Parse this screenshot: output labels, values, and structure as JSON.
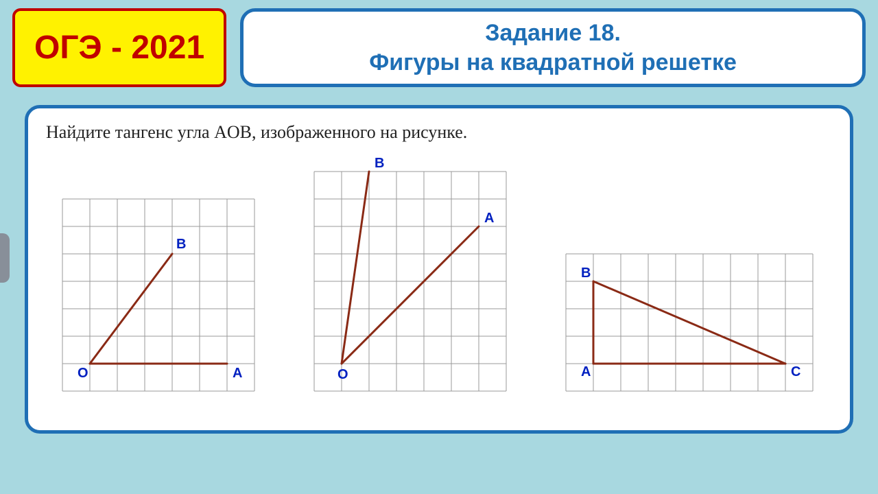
{
  "colors": {
    "page_bg": "#a8d8e0",
    "badge_bg": "#fff200",
    "badge_border": "#c00000",
    "badge_text": "#c00000",
    "panel_bg": "#ffffff",
    "panel_border": "#1f6fb5",
    "title_text": "#1f6fb5",
    "problem_text": "#222222",
    "grid_line": "#9a9a9a",
    "figure_line": "#8a2a15",
    "point_label": "#0020c0"
  },
  "header": {
    "exam_label": "ОГЭ - 2021",
    "title_line1": "Задание 18.",
    "title_line2": "Фигуры на квадратной решетке"
  },
  "problem": {
    "prompt": "Найдите тангенс угла AOB, изображенного на рисунке."
  },
  "figures": {
    "fig1": {
      "type": "angle-on-grid",
      "grid": {
        "cols": 7,
        "rows": 7,
        "cell": 40
      },
      "origin_at": {
        "gx": 1,
        "gy": 6
      },
      "points": {
        "O": {
          "gx": 1,
          "gy": 6,
          "label": "O",
          "label_dx": -18,
          "label_dy": 20
        },
        "A": {
          "gx": 6,
          "gy": 6,
          "label": "A",
          "label_dx": 8,
          "label_dy": 20
        },
        "B": {
          "gx": 4,
          "gy": 2,
          "label": "B",
          "label_dx": 6,
          "label_dy": -8
        }
      },
      "rays": [
        [
          "O",
          "A"
        ],
        [
          "O",
          "B"
        ]
      ],
      "line_width": 3
    },
    "fig2": {
      "type": "angle-on-grid",
      "grid": {
        "cols": 7,
        "rows": 8,
        "cell": 40
      },
      "origin_at": {
        "gx": 1,
        "gy": 7
      },
      "points": {
        "O": {
          "gx": 1,
          "gy": 7,
          "label": "O",
          "label_dx": -6,
          "label_dy": 22
        },
        "A": {
          "gx": 6,
          "gy": 2,
          "label": "A",
          "label_dx": 8,
          "label_dy": -6
        },
        "B": {
          "gx": 2,
          "gy": 0,
          "label": "B",
          "label_dx": 8,
          "label_dy": -6
        }
      },
      "rays": [
        [
          "O",
          "A"
        ],
        [
          "O",
          "B"
        ]
      ],
      "line_width": 3
    },
    "fig3": {
      "type": "angle-on-grid",
      "grid": {
        "cols": 9,
        "rows": 5,
        "cell": 40
      },
      "points": {
        "B": {
          "gx": 1,
          "gy": 1,
          "label": "B",
          "label_dx": -18,
          "label_dy": -6
        },
        "A": {
          "gx": 1,
          "gy": 4,
          "label": "A",
          "label_dx": -18,
          "label_dy": 18
        },
        "C": {
          "gx": 8,
          "gy": 4,
          "label": "C",
          "label_dx": 8,
          "label_dy": 18
        }
      },
      "rays": [
        [
          "B",
          "A"
        ],
        [
          "A",
          "C"
        ],
        [
          "B",
          "C"
        ]
      ],
      "line_width": 3
    }
  }
}
